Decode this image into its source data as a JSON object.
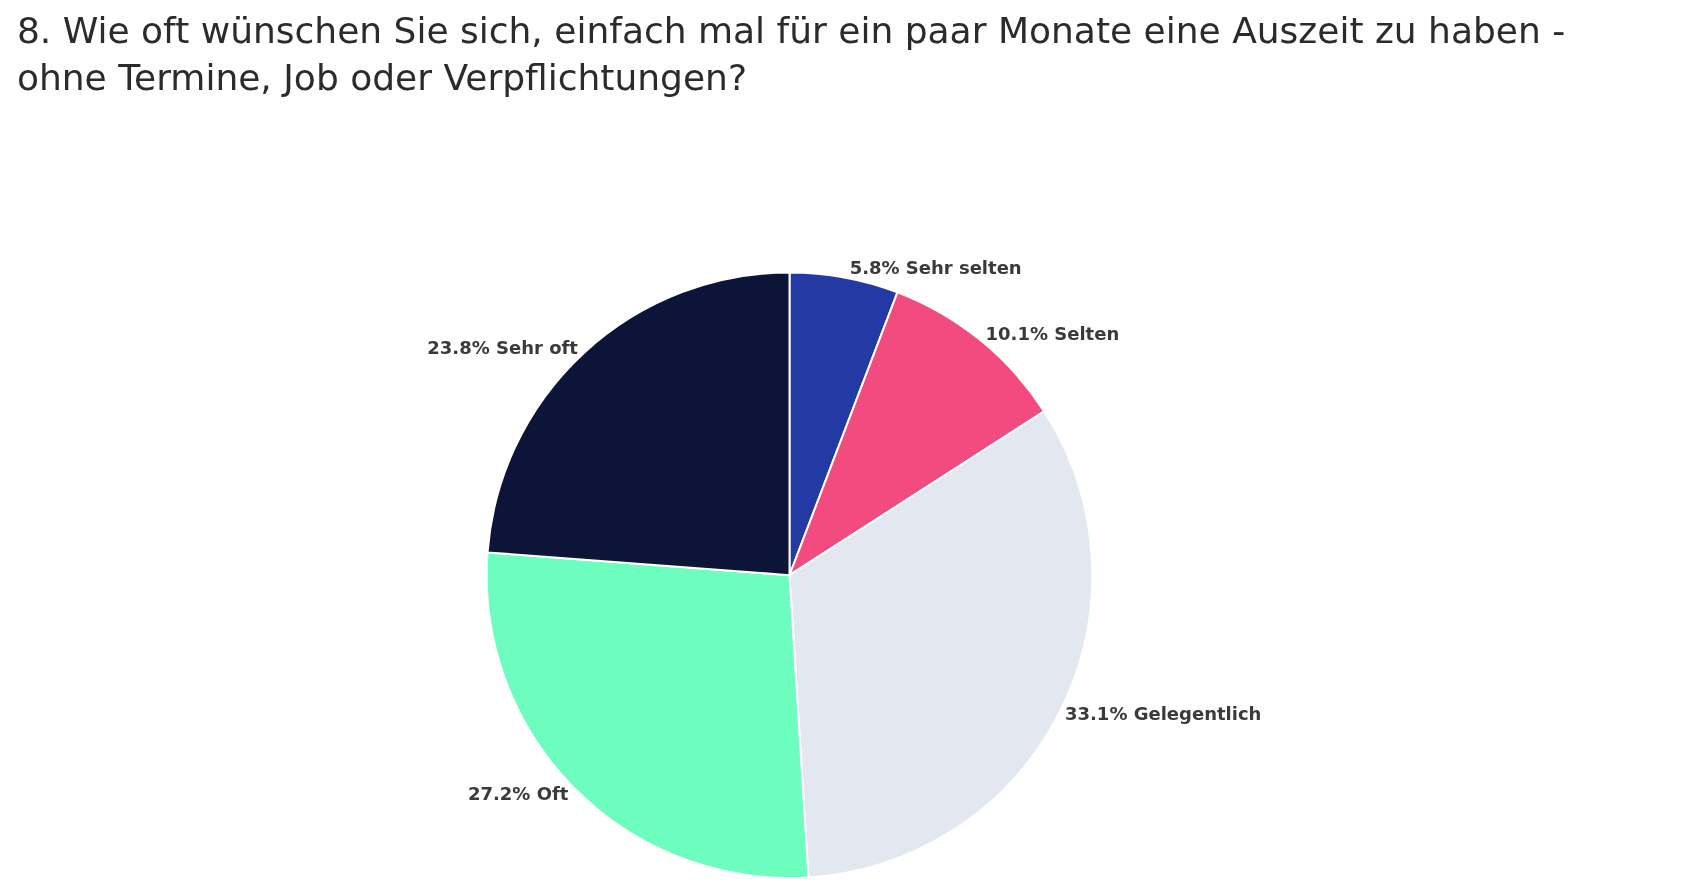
{
  "chart_data": {
    "type": "pie",
    "title": "8. Wie oft wünschen Sie sich, einfach mal für ein paar Monate eine Auszeit zu haben - ohne Termine, Job oder Verpflichtungen?",
    "categories": [
      "Sehr selten",
      "Selten",
      "Gelegentlich",
      "Oft",
      "Sehr oft"
    ],
    "values": [
      5.8,
      10.1,
      33.1,
      27.2,
      23.8
    ],
    "value_labels": [
      "5.8%",
      "10.1%",
      "33.1%",
      "27.2%",
      "23.8%"
    ],
    "colors": [
      "#2339a3",
      "#f24b7f",
      "#e2e7f0",
      "#6cfdbf",
      "#0c1438"
    ],
    "legend": false
  }
}
